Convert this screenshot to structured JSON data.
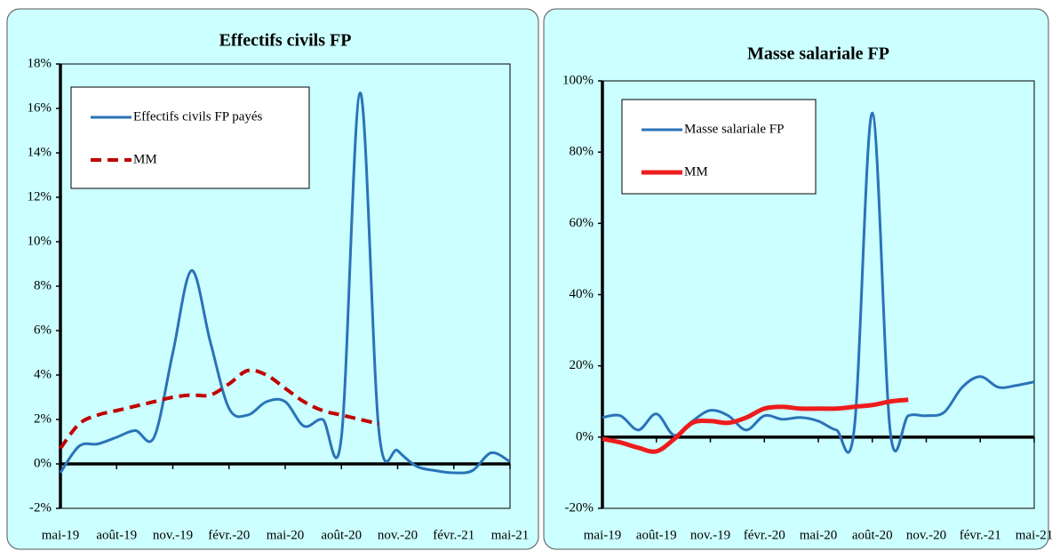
{
  "chart_data": [
    {
      "type": "line",
      "title": "Effectifs civils FP",
      "categories": [
        "mai-19",
        null,
        null,
        "août-19",
        null,
        null,
        "nov.-19",
        null,
        null,
        "févr.-20",
        null,
        null,
        "mai-20",
        null,
        null,
        "août-20",
        null,
        null,
        "nov.-20",
        null,
        null,
        "févr.-21",
        null,
        null,
        "mai-21"
      ],
      "series": [
        {
          "name": "Effectifs civils FP payés",
          "color": "#2a73b8",
          "line_style": "solid",
          "values": [
            -0.4,
            0.8,
            0.9,
            1.2,
            1.5,
            1.2,
            5.0,
            8.7,
            5.5,
            2.5,
            2.2,
            2.8,
            2.8,
            1.7,
            2.0,
            1.2,
            16.7,
            1.5,
            0.6,
            -0.1,
            -0.3,
            -0.4,
            -0.3,
            0.5,
            0.1
          ]
        },
        {
          "name": "MM",
          "color": "#c00000",
          "line_style": "dashed",
          "values": [
            0.7,
            1.8,
            2.2,
            2.4,
            2.6,
            2.8,
            3.0,
            3.1,
            3.1,
            3.6,
            4.2,
            4.0,
            3.4,
            2.8,
            2.4,
            2.2,
            2.0,
            1.8,
            null,
            null,
            null,
            null,
            null,
            null,
            null
          ]
        }
      ],
      "ylim": [
        -2,
        18
      ],
      "yticks": [
        {
          "value": -2,
          "label": "-2%"
        },
        {
          "value": 0,
          "label": "0%"
        },
        {
          "value": 2,
          "label": "2%"
        },
        {
          "value": 4,
          "label": "4%"
        },
        {
          "value": 6,
          "label": "6%"
        },
        {
          "value": 8,
          "label": "8%"
        },
        {
          "value": 10,
          "label": "10%"
        },
        {
          "value": 12,
          "label": "12%"
        },
        {
          "value": 14,
          "label": "14%"
        },
        {
          "value": 16,
          "label": "16%"
        },
        {
          "value": 18,
          "label": "18%"
        }
      ],
      "legend": "upper left",
      "grid": false
    },
    {
      "type": "line",
      "title": "Masse salariale FP",
      "categories": [
        "mai-19",
        null,
        null,
        "août-19",
        null,
        null,
        "nov.-19",
        null,
        null,
        "févr.-20",
        null,
        null,
        "mai-20",
        null,
        null,
        "août-20",
        null,
        null,
        "nov.-20",
        null,
        null,
        "févr.-21",
        null,
        null,
        "mai-21"
      ],
      "series": [
        {
          "name": "Masse salariale FP",
          "color": "#2a73b8",
          "line_style": "solid",
          "values": [
            5.5,
            6,
            2,
            6.5,
            0.5,
            4.5,
            7.5,
            6,
            2,
            6,
            5,
            5.5,
            4.5,
            2,
            2.5,
            91,
            1.5,
            6,
            6,
            7,
            14,
            17,
            14,
            14.5,
            15.5
          ]
        },
        {
          "name": "MM",
          "color": "#ee1c1c",
          "line_style": "solid",
          "values": [
            -0.5,
            -1.5,
            -3,
            -4,
            -0.5,
            4,
            4.5,
            4,
            5.5,
            8,
            8.5,
            8,
            8,
            8,
            8.5,
            9,
            10,
            10.5,
            null,
            null,
            null,
            null,
            null,
            null,
            null
          ]
        }
      ],
      "ylim": [
        -20,
        100
      ],
      "yticks": [
        {
          "value": -20,
          "label": "-20%"
        },
        {
          "value": 0,
          "label": "0%"
        },
        {
          "value": 20,
          "label": "20%"
        },
        {
          "value": 40,
          "label": "40%"
        },
        {
          "value": 60,
          "label": "60%"
        },
        {
          "value": 80,
          "label": "80%"
        },
        {
          "value": 100,
          "label": "100%"
        }
      ],
      "legend": "upper left",
      "grid": false
    }
  ]
}
